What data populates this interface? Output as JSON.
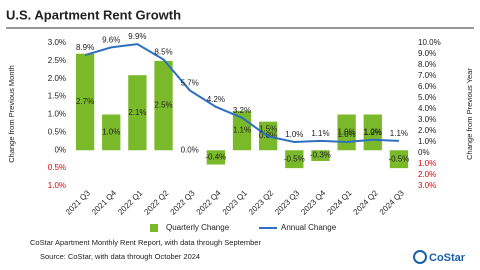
{
  "chart_data": {
    "type": "bar",
    "title": "U.S. Apartment Rent Growth",
    "y_label": "Change from Previous Month",
    "y2_label": "Change from Previous Year",
    "categories": [
      "2021 Q3",
      "2021 Q4",
      "2022 Q1",
      "2022 Q2",
      "2022 Q3",
      "2022 Q4",
      "2023 Q1",
      "2023 Q2",
      "2023 Q3",
      "2023 Q4",
      "2024 Q1",
      "2024 Q2",
      "2024 Q3"
    ],
    "series": [
      {
        "name": "Quarterly Change",
        "type": "bar",
        "color": "#7ab929",
        "values": [
          2.7,
          1.0,
          2.1,
          2.5,
          0.0,
          -0.4,
          1.1,
          0.8,
          -0.5,
          -0.3,
          1.0,
          1.0,
          -0.5
        ],
        "value_labels": [
          "2.7%",
          "1.0%",
          "2.1%",
          "2.5%",
          "0.0%",
          "-0.4%",
          "1.1%",
          "0.8%",
          "-0.5%",
          "-0.3%",
          "1.0%",
          "1.0%",
          "-0.5%"
        ]
      },
      {
        "name": "Annual Change",
        "type": "line",
        "axis": "y2",
        "color": "#2f6fc0",
        "values": [
          8.9,
          9.6,
          9.9,
          8.5,
          5.7,
          4.2,
          3.2,
          1.5,
          1.0,
          1.1,
          1.0,
          1.2,
          1.1
        ],
        "value_labels": [
          "8.9%",
          "9.6%",
          "9.9%",
          "8.5%",
          "5.7%",
          "4.2%",
          "3.2%",
          "1.5%",
          "1.0%",
          "1.1%",
          "1.0%",
          "1.2%",
          "1.1%"
        ]
      }
    ],
    "ylim": [
      -1,
      3
    ],
    "yticks": [
      {
        "value": 3,
        "label": "3.0%"
      },
      {
        "value": 2.5,
        "label": "2.5%"
      },
      {
        "value": 2,
        "label": "2.0%"
      },
      {
        "value": 1.5,
        "label": "1.5%"
      },
      {
        "value": 1,
        "label": "1.0%"
      },
      {
        "value": 0.5,
        "label": "0.5%"
      },
      {
        "value": 0,
        "label": "0%"
      },
      {
        "value": -0.5,
        "label": "0.5%"
      },
      {
        "value": -1,
        "label": "1.0%"
      }
    ],
    "y2lim": [
      -3,
      10
    ],
    "y2ticks": [
      {
        "value": 10,
        "label": "10.0%"
      },
      {
        "value": 9,
        "label": "9.0%"
      },
      {
        "value": 8,
        "label": "8.0%"
      },
      {
        "value": 7,
        "label": "7.0%"
      },
      {
        "value": 6,
        "label": "6.0%"
      },
      {
        "value": 5,
        "label": "5.0%"
      },
      {
        "value": 4,
        "label": "4.0%"
      },
      {
        "value": 3,
        "label": "3.0%"
      },
      {
        "value": 2,
        "label": "2.0%"
      },
      {
        "value": 1,
        "label": "1.0%"
      },
      {
        "value": 0,
        "label": "0%"
      },
      {
        "value": -1,
        "label": "1.0%"
      },
      {
        "value": -2,
        "label": "2.0%"
      },
      {
        "value": -3,
        "label": "3.0%"
      }
    ],
    "negative_tick_color": "#e00000",
    "grid": false,
    "legend": "bottom",
    "notes": [
      "CoStar Apartment Monthly Rent Report, with data through September",
      "Source: CoStar, with data through October 2024"
    ],
    "logo": "CoStar"
  }
}
